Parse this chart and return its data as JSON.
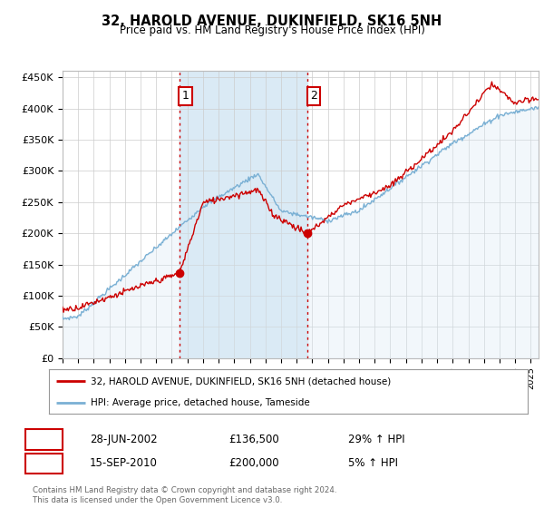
{
  "title": "32, HAROLD AVENUE, DUKINFIELD, SK16 5NH",
  "subtitle": "Price paid vs. HM Land Registry's House Price Index (HPI)",
  "ylabel_ticks": [
    "£0",
    "£50K",
    "£100K",
    "£150K",
    "£200K",
    "£250K",
    "£300K",
    "£350K",
    "£400K",
    "£450K"
  ],
  "ytick_values": [
    0,
    50000,
    100000,
    150000,
    200000,
    250000,
    300000,
    350000,
    400000,
    450000
  ],
  "ylim": [
    0,
    460000
  ],
  "xlim_start": 1995.0,
  "xlim_end": 2025.5,
  "red_color": "#cc0000",
  "blue_color": "#7ab0d4",
  "blue_fill_color": "#daeaf5",
  "vline_color": "#cc0000",
  "point1_x": 2002.49,
  "point1_y": 136500,
  "point2_x": 2010.71,
  "point2_y": 200000,
  "legend_line1": "32, HAROLD AVENUE, DUKINFIELD, SK16 5NH (detached house)",
  "legend_line2": "HPI: Average price, detached house, Tameside",
  "table_row1": [
    "1",
    "28-JUN-2002",
    "£136,500",
    "29% ↑ HPI"
  ],
  "table_row2": [
    "2",
    "15-SEP-2010",
    "£200,000",
    "5% ↑ HPI"
  ],
  "footnote": "Contains HM Land Registry data © Crown copyright and database right 2024.\nThis data is licensed under the Open Government Licence v3.0.",
  "background_color": "#ffffff",
  "grid_color": "#cccccc"
}
